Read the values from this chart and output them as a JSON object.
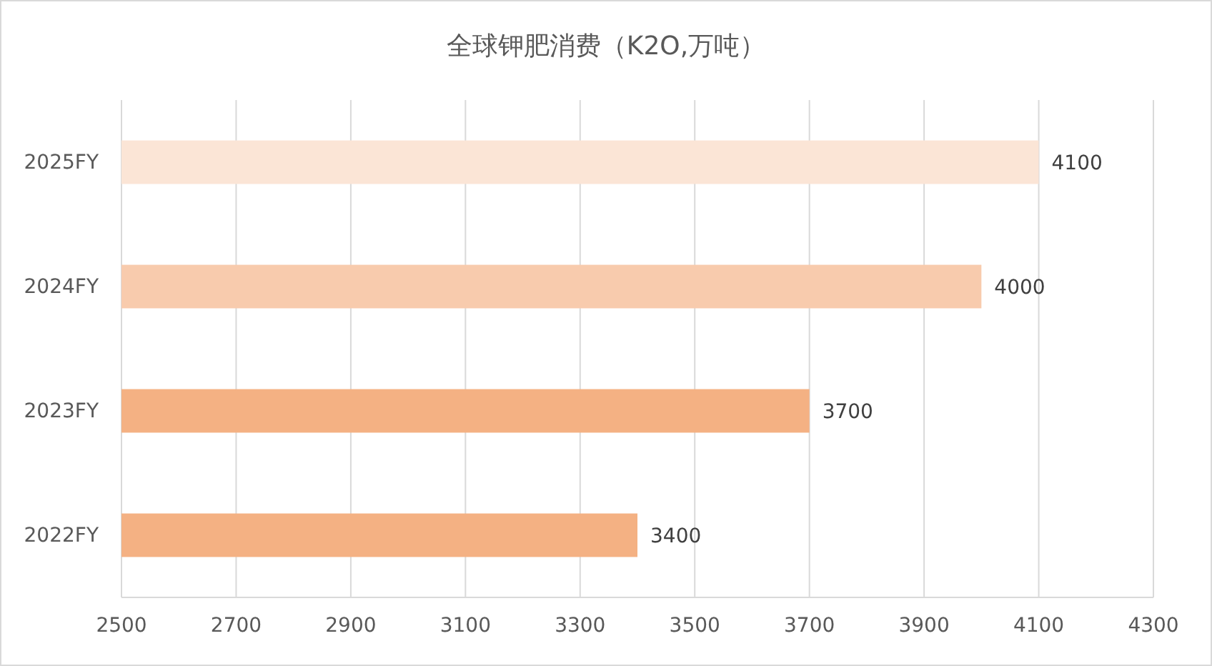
{
  "chart_data": {
    "type": "bar",
    "orientation": "horizontal",
    "title": "全球钾肥消费（K2O,万吨）",
    "categories": [
      "2025FY",
      "2024FY",
      "2023FY",
      "2022FY"
    ],
    "values": [
      4100,
      4000,
      3700,
      3400
    ],
    "colors": [
      "#fbe5d6",
      "#f8cbad",
      "#f4b183",
      "#f4b183"
    ],
    "xlim": [
      2500,
      4300
    ],
    "xticks": [
      2500,
      2700,
      2900,
      3100,
      3300,
      3500,
      3700,
      3900,
      4100,
      4300
    ],
    "grid": "x",
    "data_labels": true
  }
}
